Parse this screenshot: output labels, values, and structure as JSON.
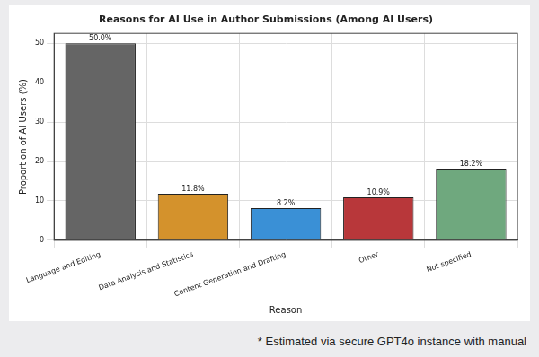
{
  "chart_data": {
    "type": "bar",
    "title": "Reasons for AI Use in Author Submissions (Among AI Users)",
    "x_label": "Reason",
    "y_label": "Proportion of AI Users (%)",
    "categories": [
      "Language and Editing",
      "Data Analysis and Statistics",
      "Content Generation and Drafting",
      "Other",
      "Not specified"
    ],
    "values": [
      50.0,
      11.8,
      8.2,
      10.9,
      18.2
    ],
    "value_labels": [
      "50.0%",
      "11.8%",
      "8.2%",
      "10.9%",
      "18.2%"
    ],
    "colors": [
      "#656565",
      "#d4922c",
      "#3a90d6",
      "#b8373a",
      "#6fa87e"
    ],
    "ylim": [
      0,
      52.5
    ],
    "yticks": [
      0,
      10,
      20,
      30,
      40,
      50
    ],
    "grid": true,
    "data_labels": true,
    "annotations": [
      "* Estimated via secure GPT4o instance with manual"
    ]
  }
}
